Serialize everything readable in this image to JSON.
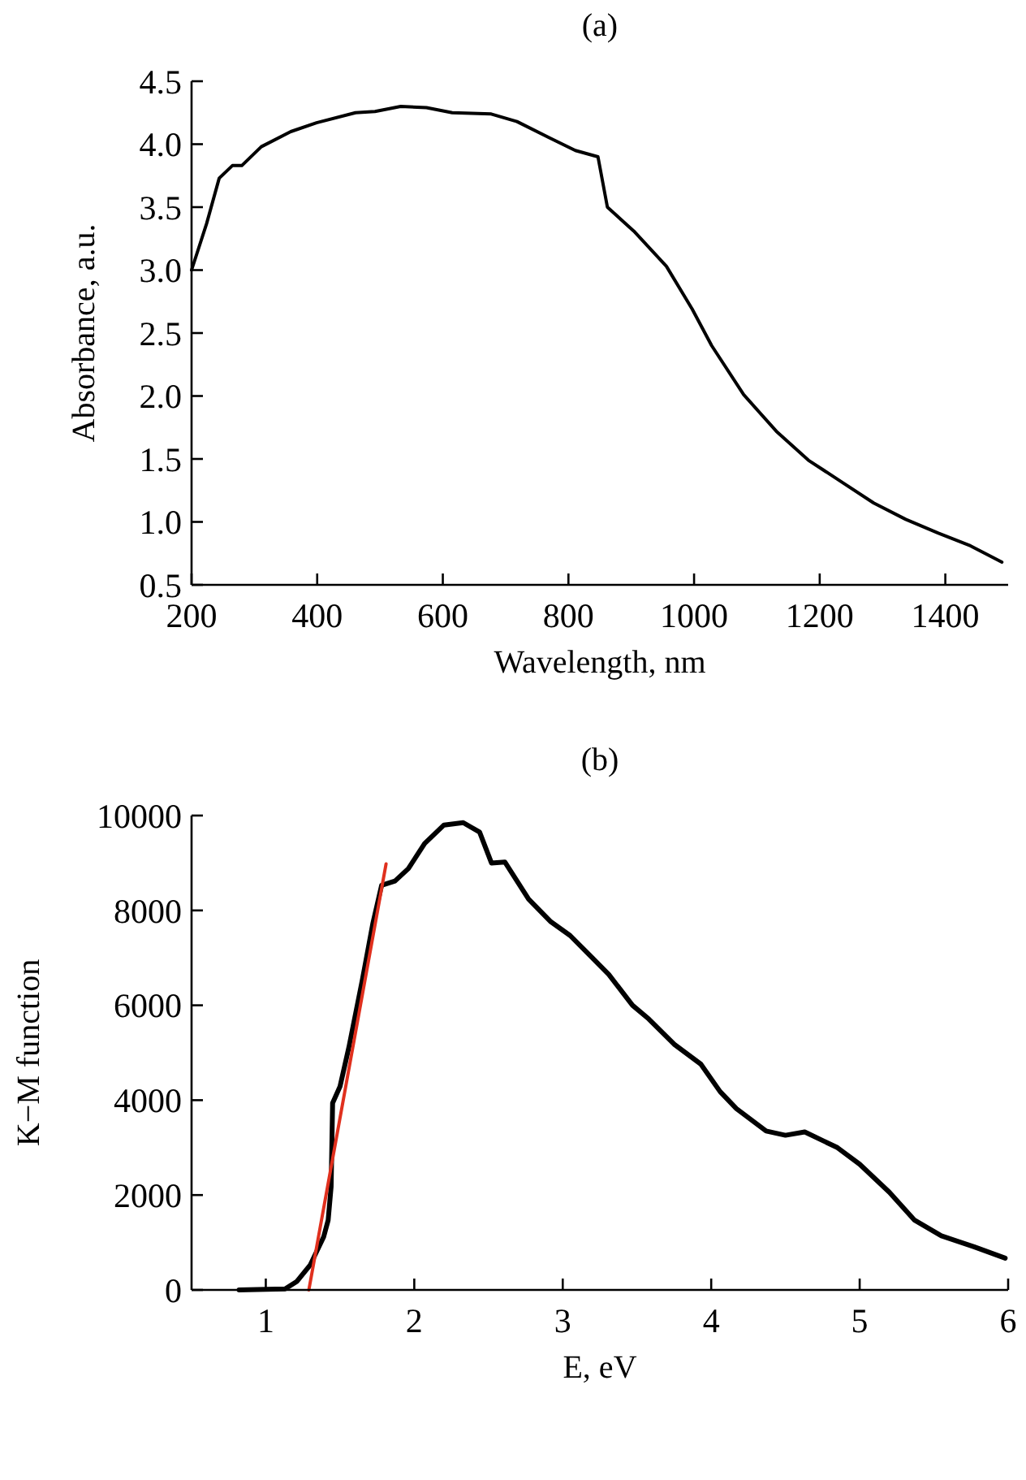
{
  "chart_data": [
    {
      "type": "line",
      "title": "(a)",
      "xlabel": "Wavelength, nm",
      "ylabel": "Absorbance, a.u.",
      "xlim": [
        200,
        1500
      ],
      "ylim": [
        0.5,
        4.5
      ],
      "xticks": [
        200,
        400,
        600,
        800,
        1000,
        1200,
        1400
      ],
      "yticks": [
        {
          "value": 0.5,
          "label": "0.5"
        },
        {
          "value": 1,
          "label": "1.0"
        },
        {
          "value": 1.5,
          "label": "1.5"
        },
        {
          "value": 2,
          "label": "2.0"
        },
        {
          "value": 2.5,
          "label": "2.5"
        },
        {
          "value": 3,
          "label": "3.0"
        },
        {
          "value": 3.5,
          "label": "3.5"
        },
        {
          "value": 4,
          "label": "4.0"
        },
        {
          "value": 4.5,
          "label": "4.5"
        }
      ],
      "series": [
        {
          "color": "#000000",
          "x": [
            200,
            224,
            244,
            265,
            280,
            311,
            358,
            399,
            461,
            492,
            533,
            574,
            615,
            677,
            718,
            770,
            811,
            847,
            862,
            904,
            956,
            997,
            1028,
            1079,
            1131,
            1182,
            1234,
            1286,
            1337,
            1389,
            1440,
            1490
          ],
          "values": [
            3.0,
            3.37,
            3.73,
            3.83,
            3.83,
            3.98,
            4.1,
            4.17,
            4.25,
            4.26,
            4.3,
            4.29,
            4.25,
            4.24,
            4.18,
            4.05,
            3.95,
            3.9,
            3.5,
            3.31,
            3.03,
            2.69,
            2.4,
            2.01,
            1.72,
            1.49,
            1.32,
            1.15,
            1.02,
            0.91,
            0.81,
            0.68
          ]
        }
      ]
    },
    {
      "type": "line",
      "title": "(b)",
      "xlabel": "E, eV",
      "ylabel": "K−M function",
      "xlim": [
        0.5,
        6
      ],
      "ylim": [
        0,
        10000
      ],
      "xticks": [
        1,
        2,
        3,
        4,
        5,
        6
      ],
      "yticks": [
        0,
        2000,
        4000,
        6000,
        8000,
        10000
      ],
      "series": [
        {
          "color": "#000000",
          "x": [
            0.82,
            1.13,
            1.21,
            1.3,
            1.39,
            1.42,
            1.44,
            1.45,
            1.5,
            1.56,
            1.65,
            1.72,
            1.78,
            1.87,
            1.96,
            2.07,
            2.2,
            2.33,
            2.44,
            2.52,
            2.61,
            2.77,
            2.92,
            3.05,
            3.18,
            3.31,
            3.47,
            3.58,
            3.75,
            3.93,
            4.06,
            4.17,
            4.37,
            4.5,
            4.63,
            4.85,
            5.0,
            5.2,
            5.37,
            5.55,
            5.77,
            5.98
          ],
          "values": [
            0,
            20,
            180,
            530,
            1120,
            1470,
            2180,
            3940,
            4290,
            5120,
            6530,
            7710,
            8530,
            8620,
            8880,
            9410,
            9800,
            9850,
            9650,
            9000,
            9020,
            8240,
            7760,
            7470,
            7060,
            6650,
            6000,
            5710,
            5180,
            4760,
            4180,
            3820,
            3350,
            3260,
            3330,
            3000,
            2650,
            2060,
            1470,
            1140,
            910,
            670
          ]
        },
        {
          "color": "#e0301e",
          "x": [
            1.29,
            1.81
          ],
          "values": [
            0,
            8980
          ]
        }
      ]
    }
  ]
}
